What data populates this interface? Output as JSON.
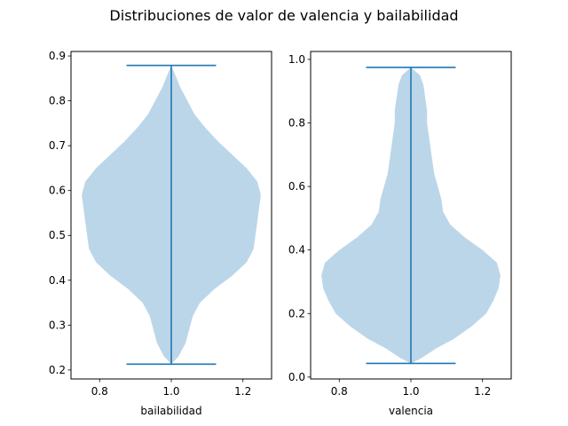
{
  "chart_data": {
    "type": "violin",
    "title": "Distribuciones de valor de valencia y bailabilidad",
    "colors": {
      "body": "#bcd6e9",
      "lines": "#1f77b4"
    },
    "panels": [
      {
        "xlabel": "bailabilidad",
        "ylabel": "",
        "xlim": [
          0.72,
          1.28
        ],
        "ylim": [
          0.18,
          0.91
        ],
        "xticks": [
          0.8,
          1.0,
          1.2
        ],
        "xtick_labels": [
          "0.8",
          "1.0",
          "1.2"
        ],
        "yticks": [
          0.2,
          0.3,
          0.4,
          0.5,
          0.6,
          0.7,
          0.8,
          0.9
        ],
        "ytick_labels": [
          "0.2",
          "0.3",
          "0.4",
          "0.5",
          "0.6",
          "0.7",
          "0.8",
          "0.9"
        ],
        "position": 1.0,
        "min": 0.213,
        "max": 0.879,
        "whisker_halfwidth": 0.125,
        "density": [
          [
            0.213,
            0.0
          ],
          [
            0.23,
            0.02
          ],
          [
            0.26,
            0.04
          ],
          [
            0.29,
            0.05
          ],
          [
            0.32,
            0.06
          ],
          [
            0.35,
            0.08
          ],
          [
            0.38,
            0.12
          ],
          [
            0.41,
            0.17
          ],
          [
            0.44,
            0.21
          ],
          [
            0.47,
            0.23
          ],
          [
            0.5,
            0.235
          ],
          [
            0.53,
            0.24
          ],
          [
            0.56,
            0.245
          ],
          [
            0.59,
            0.25
          ],
          [
            0.62,
            0.24
          ],
          [
            0.65,
            0.21
          ],
          [
            0.68,
            0.17
          ],
          [
            0.71,
            0.13
          ],
          [
            0.74,
            0.095
          ],
          [
            0.77,
            0.065
          ],
          [
            0.8,
            0.045
          ],
          [
            0.83,
            0.025
          ],
          [
            0.86,
            0.01
          ],
          [
            0.879,
            0.0
          ]
        ]
      },
      {
        "xlabel": "valencia",
        "ylabel": "",
        "xlim": [
          0.72,
          1.28
        ],
        "ylim": [
          -0.006,
          1.025
        ],
        "xticks": [
          0.8,
          1.0,
          1.2
        ],
        "xtick_labels": [
          "0.8",
          "1.0",
          "1.2"
        ],
        "yticks": [
          0.0,
          0.2,
          0.4,
          0.6,
          0.8,
          1.0
        ],
        "ytick_labels": [
          "0.0",
          "0.2",
          "0.4",
          "0.6",
          "0.8",
          "1.0"
        ],
        "position": 1.0,
        "min": 0.043,
        "max": 0.975,
        "whisker_halfwidth": 0.125,
        "density": [
          [
            0.043,
            0.0
          ],
          [
            0.06,
            0.03
          ],
          [
            0.09,
            0.07
          ],
          [
            0.12,
            0.12
          ],
          [
            0.16,
            0.17
          ],
          [
            0.2,
            0.21
          ],
          [
            0.24,
            0.23
          ],
          [
            0.28,
            0.245
          ],
          [
            0.32,
            0.25
          ],
          [
            0.36,
            0.24
          ],
          [
            0.4,
            0.2
          ],
          [
            0.44,
            0.15
          ],
          [
            0.48,
            0.11
          ],
          [
            0.52,
            0.09
          ],
          [
            0.56,
            0.085
          ],
          [
            0.6,
            0.075
          ],
          [
            0.64,
            0.065
          ],
          [
            0.68,
            0.06
          ],
          [
            0.72,
            0.055
          ],
          [
            0.76,
            0.05
          ],
          [
            0.8,
            0.045
          ],
          [
            0.84,
            0.045
          ],
          [
            0.88,
            0.04
          ],
          [
            0.92,
            0.035
          ],
          [
            0.95,
            0.025
          ],
          [
            0.975,
            0.0
          ]
        ]
      }
    ]
  }
}
